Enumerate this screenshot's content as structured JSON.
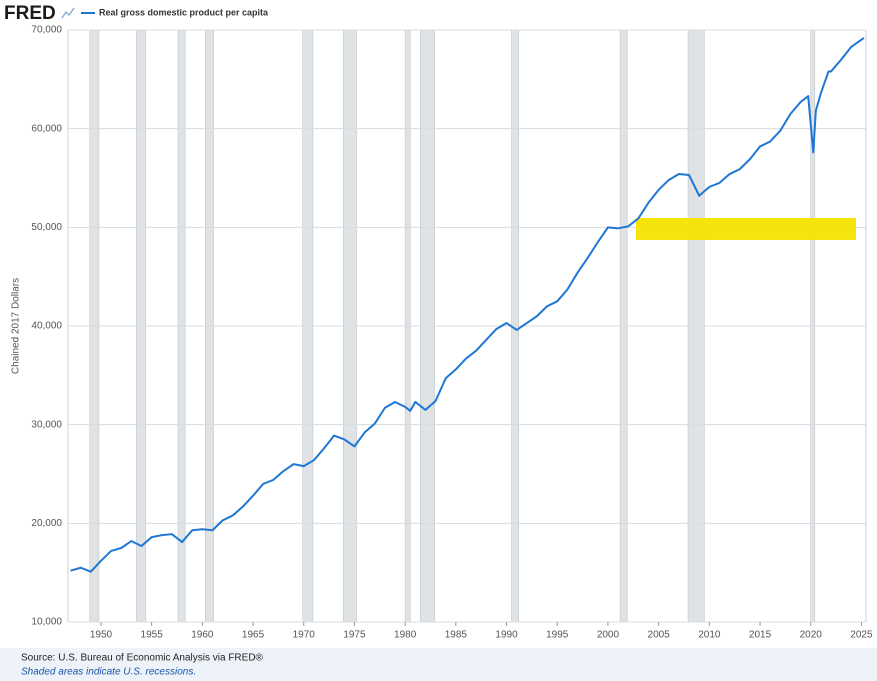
{
  "chart_data": {
    "type": "line",
    "logo": "FRED",
    "title": "Real gross domestic product per capita",
    "y_label": "Chained 2017 Dollars",
    "source": "Source: U.S. Bureau of Economic Analysis via FRED®",
    "note": "Shaded areas indicate U.S. recessions.",
    "xlim": [
      1946.75,
      2025.45
    ],
    "ylim": [
      10000,
      70000
    ],
    "xticks": [
      1950,
      1955,
      1960,
      1965,
      1970,
      1975,
      1980,
      1985,
      1990,
      1995,
      2000,
      2005,
      2010,
      2015,
      2020,
      2025
    ],
    "yticks": [
      {
        "value": 10000,
        "label": "10,000"
      },
      {
        "value": 20000,
        "label": "20,000"
      },
      {
        "value": 30000,
        "label": "30,000"
      },
      {
        "value": 40000,
        "label": "40,000"
      },
      {
        "value": 50000,
        "label": "50,000"
      },
      {
        "value": 60000,
        "label": "60,000"
      },
      {
        "value": 70000,
        "label": "70,000"
      }
    ],
    "grid": true,
    "recession_color": "#dfe3e6",
    "recessions": [
      [
        1948.9,
        1949.8
      ],
      [
        1953.5,
        1954.4
      ],
      [
        1957.6,
        1958.3
      ],
      [
        1960.3,
        1961.1
      ],
      [
        1969.9,
        1970.9
      ],
      [
        1973.9,
        1975.2
      ],
      [
        1980.0,
        1980.5
      ],
      [
        1981.5,
        1982.9
      ],
      [
        1990.5,
        1991.2
      ],
      [
        2001.2,
        2001.9
      ],
      [
        2007.9,
        2009.5
      ],
      [
        2020.0,
        2020.4
      ]
    ],
    "series": [
      {
        "name": "Real gross domestic product per capita",
        "color": "#1f77d4",
        "x": [
          1947,
          1948,
          1949,
          1950,
          1951,
          1952,
          1953,
          1954,
          1955,
          1956,
          1957,
          1958,
          1959,
          1960,
          1961,
          1962,
          1963,
          1964,
          1965,
          1966,
          1967,
          1968,
          1969,
          1970,
          1971,
          1972,
          1973,
          1974,
          1975,
          1976,
          1977,
          1978,
          1979,
          1980,
          1980.5,
          1981,
          1982,
          1983,
          1984,
          1985,
          1986,
          1987,
          1988,
          1989,
          1990,
          1991,
          1992,
          1993,
          1994,
          1995,
          1996,
          1997,
          1998,
          1999,
          2000,
          2001,
          2002,
          2003,
          2004,
          2005,
          2006,
          2007,
          2008,
          2009,
          2010,
          2011,
          2012,
          2013,
          2014,
          2015,
          2016,
          2017,
          2018,
          2019,
          2019.75,
          2020.25,
          2020.5,
          2021,
          2021.75,
          2022,
          2023,
          2024,
          2025.25
        ],
        "values": [
          15200,
          15500,
          15100,
          16200,
          17200,
          17500,
          18200,
          17700,
          18600,
          18800,
          18900,
          18100,
          19300,
          19400,
          19300,
          20300,
          20800,
          21700,
          22800,
          24000,
          24400,
          25300,
          26000,
          25800,
          26400,
          27600,
          28900,
          28500,
          27800,
          29200,
          30100,
          31700,
          32300,
          31800,
          31400,
          32300,
          31500,
          32400,
          34700,
          35600,
          36700,
          37500,
          38600,
          39700,
          40300,
          39600,
          40300,
          41000,
          42000,
          42500,
          43700,
          45400,
          46900,
          48500,
          50000,
          49900,
          50100,
          50900,
          52500,
          53800,
          54800,
          55400,
          55300,
          53200,
          54100,
          54500,
          55400,
          55900,
          56900,
          58200,
          58700,
          59800,
          61500,
          62700,
          63300,
          57600,
          61800,
          63600,
          65800,
          65800,
          67000,
          68300,
          69200
        ]
      }
    ]
  }
}
